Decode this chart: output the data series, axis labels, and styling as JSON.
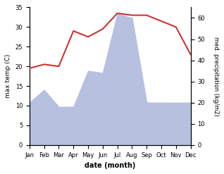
{
  "months": [
    "Jan",
    "Feb",
    "Mar",
    "Apr",
    "May",
    "Jun",
    "Jul",
    "Aug",
    "Sep",
    "Oct",
    "Nov",
    "Dec"
  ],
  "temperature": [
    19.5,
    20.5,
    20.0,
    29.0,
    27.5,
    29.5,
    33.5,
    33.0,
    33.0,
    31.5,
    30.0,
    23.0
  ],
  "precipitation": [
    20,
    26,
    18,
    18,
    35,
    34,
    62,
    60,
    20,
    20,
    20,
    20
  ],
  "temp_color": "#cc3333",
  "precip_fill_color": "#b8c0e0",
  "temp_ylim": [
    0,
    35
  ],
  "precip_ylim": [
    0,
    65
  ],
  "temp_yticks": [
    0,
    5,
    10,
    15,
    20,
    25,
    30,
    35
  ],
  "precip_yticks": [
    0,
    10,
    20,
    30,
    40,
    50,
    60
  ],
  "ylabel_left": "max temp (C)",
  "ylabel_right": "med. precipitation (kg/m2)",
  "xlabel": "date (month)",
  "figsize": [
    3.18,
    2.47
  ],
  "dpi": 100
}
